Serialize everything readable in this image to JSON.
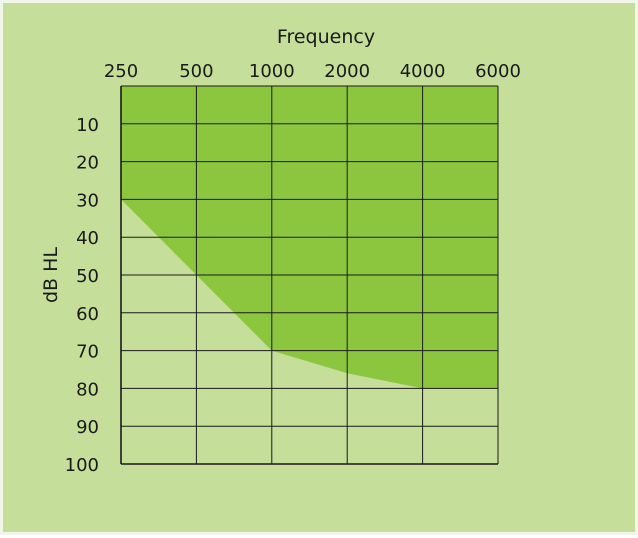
{
  "chart_data": {
    "type": "area",
    "title": "",
    "xlabel": "Frequency",
    "ylabel": "dB HL",
    "x_categories": [
      "250",
      "500",
      "1000",
      "2000",
      "4000",
      "6000"
    ],
    "y_ticks": [
      "10",
      "20",
      "30",
      "40",
      "50",
      "60",
      "70",
      "80",
      "90",
      "100"
    ],
    "ylim": [
      0,
      100
    ],
    "y_inverted": true,
    "grid": true,
    "series": [
      {
        "frequency": [
          "250",
          "500",
          "1000",
          "2000",
          "4000",
          "6000"
        ],
        "db_hl": [
          30,
          50,
          70,
          76,
          80,
          80
        ]
      }
    ],
    "colors": {
      "background": "#c5df9b",
      "above_curve": "#8cc63f",
      "below_curve": "#c5df9b",
      "grid": "#1a1a1a"
    }
  }
}
